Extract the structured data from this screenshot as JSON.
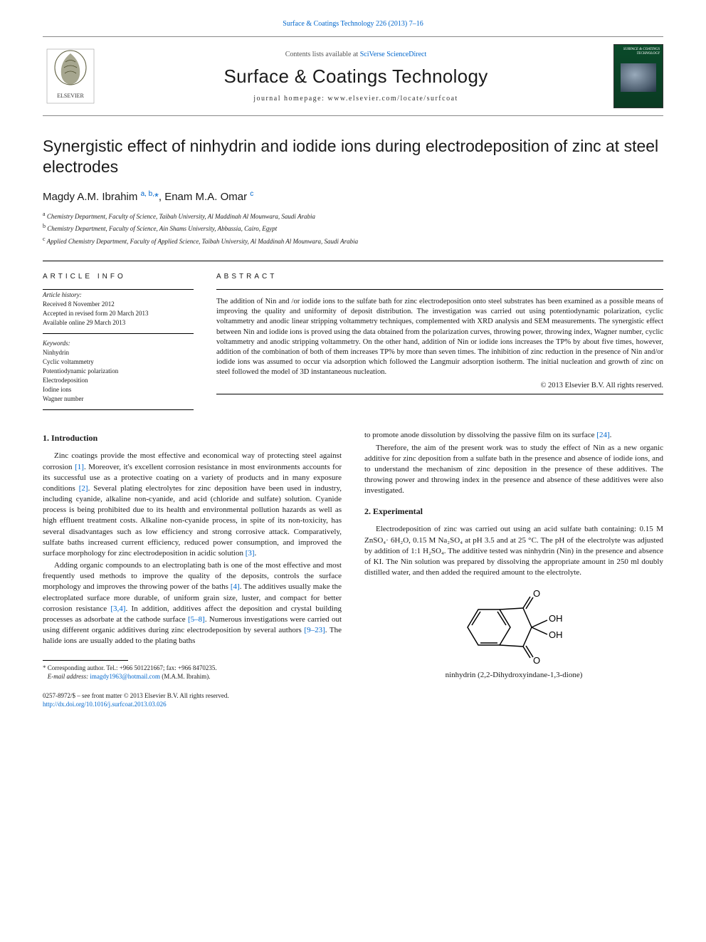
{
  "top_citation": "Surface & Coatings Technology 226 (2013) 7–16",
  "header": {
    "contents_prefix": "Contents lists available at ",
    "contents_link": "SciVerse ScienceDirect",
    "journal": "Surface & Coatings Technology",
    "homepage": "journal homepage: www.elsevier.com/locate/surfcoat",
    "cover_text": "SURFACE & COATINGS TECHNOLOGY"
  },
  "article": {
    "title": "Synergistic effect of ninhydrin and iodide ions during electrodeposition of zinc at steel electrodes",
    "authors_html": "Magdy A.M. Ibrahim <sup>a, b,</sup><span class='star'>*</span>, Enam M.A. Omar <sup>c</sup>",
    "affiliations": [
      {
        "sup": "a",
        "text": "Chemistry Department, Faculty of Science, Taibah University, Al Maddinah Al Mounwara, Saudi Arabia"
      },
      {
        "sup": "b",
        "text": "Chemistry Department, Faculty of Science, Ain Shams University, Abbassia, Cairo, Egypt"
      },
      {
        "sup": "c",
        "text": "Applied Chemistry Department, Faculty of Applied Science, Taibah University, Al Maddinah Al Mounwara, Saudi Arabia"
      }
    ]
  },
  "info": {
    "label": "ARTICLE INFO",
    "history_label": "Article history:",
    "history": "Received 8 November 2012\nAccepted in revised form 20 March 2013\nAvailable online 29 March 2013",
    "keywords_label": "Keywords:",
    "keywords": "Ninhydrin\nCyclic voltammetry\nPotentiodynamic polarization\nElectrodeposition\nIodine ions\nWagner number"
  },
  "abstract": {
    "label": "ABSTRACT",
    "text": "The addition of Nin and /or iodide ions to the sulfate bath for zinc electrodeposition onto steel substrates has been examined as a possible means of improving the quality and uniformity of deposit distribution. The investigation was carried out using potentiodynamic polarization, cyclic voltammetry and anodic linear stripping voltammetry techniques, complemented with XRD analysis and SEM measurements. The synergistic effect between Nin and iodide ions is proved using the data obtained from the polarization curves, throwing power, throwing index, Wagner number, cyclic voltammetry and anodic stripping voltammetry. On the other hand, addition of Nin or iodide ions increases the TP% by about five times, however, addition of the combination of both of them increases TP% by more than seven times. The inhibition of zinc reduction in the presence of Nin and/or iodide ions was assumed to occur via adsorption which followed the Langmuir adsorption isotherm. The initial nucleation and growth of zinc on steel followed the model of 3D instantaneous nucleation.",
    "copyright": "© 2013 Elsevier B.V. All rights reserved."
  },
  "body": {
    "intro_h": "1. Introduction",
    "intro_p1": "Zinc coatings provide the most effective and economical way of protecting steel against corrosion <span class='cite'>[1]</span>. Moreover, it's excellent corrosion resistance in most environments accounts for its successful use as a protective coating on a variety of products and in many exposure conditions <span class='cite'>[2]</span>. Several plating electrolytes for zinc deposition have been used in industry, including cyanide, alkaline non-cyanide, and acid (chloride and sulfate) solution. Cyanide process is being prohibited due to its health and environmental pollution hazards as well as high effluent treatment costs. Alkaline non-cyanide process, in spite of its non-toxicity, has several disadvantages such as low efficiency and strong corrosive attack. Comparatively, sulfate baths increased current efficiency, reduced power consumption, and improved the surface morphology for zinc electrodeposition in acidic solution <span class='cite'>[3]</span>.",
    "intro_p2": "Adding organic compounds to an electroplating bath is one of the most effective and most frequently used methods to improve the quality of the deposits, controls the surface morphology and improves the throwing power of the baths <span class='cite'>[4]</span>. The additives usually make the electroplated surface more durable, of uniform grain size, luster, and compact for better corrosion resistance <span class='cite'>[3,4]</span>. In addition, additives affect the deposition and crystal building processes as adsorbate at the cathode surface <span class='cite'>[5–8]</span>. Numerous investigations were carried out using different organic additives during zinc electrodeposition by several authors <span class='cite'>[9–23]</span>. The halide ions are usually added to the plating baths",
    "col2_p1": "to promote anode dissolution by dissolving the passive film on its surface <span class='cite'>[24]</span>.",
    "col2_p2": "Therefore, the aim of the present work was to study the effect of Nin as a new organic additive for zinc deposition from a sulfate bath in the presence and absence of iodide ions, and to understand the mechanism of zinc deposition in the presence of these additives. The throwing power and throwing index in the presence and absence of these additives were also investigated.",
    "exp_h": "2. Experimental",
    "exp_p1": "Electrodeposition of zinc was carried out using an acid sulfate bath containing: 0.15 M ZnSO₄· 6H₂O, 0.15 M Na₂SO₄ at pH 3.5 and at 25 °C. The pH of the electrolyte was adjusted by addition of 1:1 H₂SO₄. The additive tested was ninhydrin (Nin) in the presence and absence of KI. The Nin solution was prepared by dissolving the appropriate amount in 250 ml doubly distilled water, and then added the required amount to the electrolyte.",
    "chem_caption": "ninhydrin (2,2-Dihydroxyindane-1,3-dione)"
  },
  "footnote": {
    "corr": "Corresponding author. Tel.: +966 501221667; fax: +966 8470235.",
    "email_label": "E-mail address:",
    "email": "imagdy1963@hotmail.com",
    "email_who": "(M.A.M. Ibrahim)."
  },
  "footer": {
    "line1": "0257-8972/$ – see front matter © 2013 Elsevier B.V. All rights reserved.",
    "doi": "http://dx.doi.org/10.1016/j.surfcoat.2013.03.026"
  },
  "colors": {
    "link": "#0066cc",
    "text": "#1a1a1a"
  }
}
